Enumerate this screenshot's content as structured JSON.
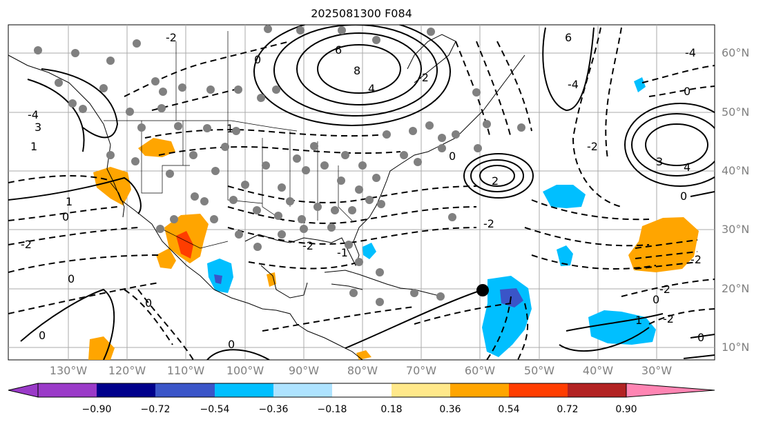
{
  "title": "2025081300 F084",
  "lat_labels": [
    "60°N",
    "50°N",
    "40°N",
    "30°N",
    "20°N",
    "10°N"
  ],
  "lon_labels": [
    "130°W",
    "120°W",
    "110°W",
    "100°W",
    "90°W",
    "80°W",
    "70°W",
    "60°W",
    "50°W",
    "40°W",
    "30°W"
  ],
  "colorbar": {
    "ticks": [
      "−0.90",
      "−0.72",
      "−0.54",
      "−0.36",
      "−0.18",
      "0.18",
      "0.36",
      "0.54",
      "0.72",
      "0.90"
    ],
    "colors": {
      "under": "#9a3ac8",
      "bins": [
        "#9a3ac8",
        "#00008b",
        "#3a55c8",
        "#00bfff",
        "#aee3ff",
        "#ffffff",
        "#ffe88a",
        "#ffa500",
        "#ff3d00",
        "#b22222"
      ],
      "over": "#ff85b3"
    }
  },
  "contour_labels": [
    "6",
    "8",
    "4",
    "2",
    "1",
    "0",
    "-2",
    "-4",
    "3",
    "-1"
  ],
  "station_marker_color": "#808080",
  "storm_marker_color": "#000000"
}
